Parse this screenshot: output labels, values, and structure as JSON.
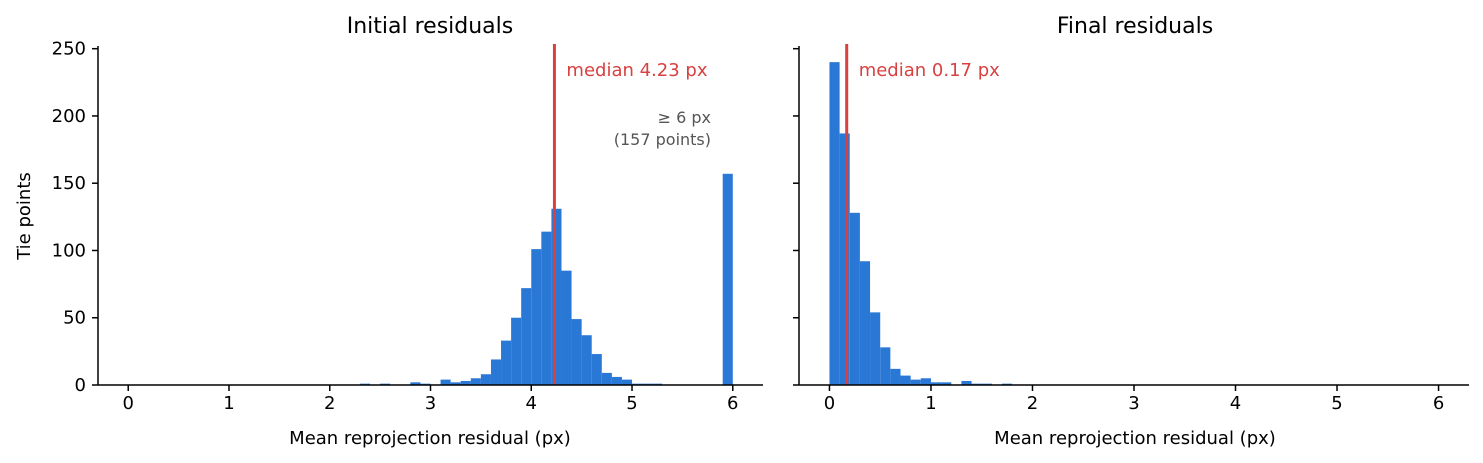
{
  "colors": {
    "bar": "#2a78d6",
    "median_line": "#d94040",
    "annotation": "#555555",
    "axis": "#000000"
  },
  "shared_ylabel": "Tie points",
  "chart_data": [
    {
      "type": "bar",
      "title": "Initial residuals",
      "xlabel": "Mean reprojection residual (px)",
      "ylabel": "Tie points",
      "xlim": [
        -0.3,
        6.3
      ],
      "ylim": [
        0,
        252
      ],
      "xticks": [
        "0",
        "1",
        "2",
        "3",
        "4",
        "5",
        "6"
      ],
      "yticks": [
        "0",
        "50",
        "100",
        "150",
        "200",
        "250"
      ],
      "bin_width": 0.1,
      "bins": [
        {
          "x0": 2.3,
          "count": 1
        },
        {
          "x0": 2.4,
          "count": 0
        },
        {
          "x0": 2.5,
          "count": 1
        },
        {
          "x0": 2.6,
          "count": 0
        },
        {
          "x0": 2.7,
          "count": 0
        },
        {
          "x0": 2.8,
          "count": 2
        },
        {
          "x0": 2.9,
          "count": 1
        },
        {
          "x0": 3.0,
          "count": 0
        },
        {
          "x0": 3.1,
          "count": 4
        },
        {
          "x0": 3.2,
          "count": 2
        },
        {
          "x0": 3.3,
          "count": 3
        },
        {
          "x0": 3.4,
          "count": 5
        },
        {
          "x0": 3.5,
          "count": 8
        },
        {
          "x0": 3.6,
          "count": 19
        },
        {
          "x0": 3.7,
          "count": 33
        },
        {
          "x0": 3.8,
          "count": 50
        },
        {
          "x0": 3.9,
          "count": 72
        },
        {
          "x0": 4.0,
          "count": 101
        },
        {
          "x0": 4.1,
          "count": 114
        },
        {
          "x0": 4.2,
          "count": 131
        },
        {
          "x0": 4.3,
          "count": 85
        },
        {
          "x0": 4.4,
          "count": 49
        },
        {
          "x0": 4.5,
          "count": 37
        },
        {
          "x0": 4.6,
          "count": 23
        },
        {
          "x0": 4.7,
          "count": 9
        },
        {
          "x0": 4.8,
          "count": 6
        },
        {
          "x0": 4.9,
          "count": 4
        },
        {
          "x0": 5.0,
          "count": 1
        },
        {
          "x0": 5.1,
          "count": 1
        },
        {
          "x0": 5.2,
          "count": 1
        },
        {
          "x0": 5.3,
          "count": 0
        },
        {
          "x0": 5.9,
          "count": 157
        }
      ],
      "median": 4.23,
      "median_label": "median 4.23 px",
      "annotation": [
        "≥ 6 px",
        "(157 points)"
      ]
    },
    {
      "type": "bar",
      "title": "Final residuals",
      "xlabel": "Mean reprojection residual (px)",
      "xlim": [
        -0.3,
        6.3
      ],
      "ylim": [
        0,
        252
      ],
      "xticks": [
        "0",
        "1",
        "2",
        "3",
        "4",
        "5",
        "6"
      ],
      "bin_width": 0.1,
      "bins": [
        {
          "x0": 0.0,
          "count": 240
        },
        {
          "x0": 0.1,
          "count": 187
        },
        {
          "x0": 0.2,
          "count": 128
        },
        {
          "x0": 0.3,
          "count": 92
        },
        {
          "x0": 0.4,
          "count": 54
        },
        {
          "x0": 0.5,
          "count": 28
        },
        {
          "x0": 0.6,
          "count": 12
        },
        {
          "x0": 0.7,
          "count": 7
        },
        {
          "x0": 0.8,
          "count": 4
        },
        {
          "x0": 0.9,
          "count": 5
        },
        {
          "x0": 1.0,
          "count": 2
        },
        {
          "x0": 1.1,
          "count": 2
        },
        {
          "x0": 1.2,
          "count": 0
        },
        {
          "x0": 1.3,
          "count": 3
        },
        {
          "x0": 1.4,
          "count": 1
        },
        {
          "x0": 1.5,
          "count": 1
        },
        {
          "x0": 1.6,
          "count": 0
        },
        {
          "x0": 1.7,
          "count": 1
        }
      ],
      "median": 0.17,
      "median_label": "median 0.17 px"
    }
  ]
}
